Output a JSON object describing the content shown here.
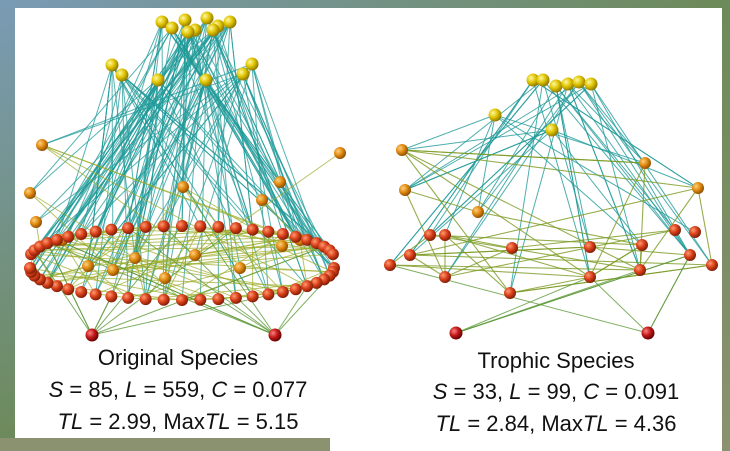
{
  "panels": [
    {
      "title": "Original Species",
      "stats": [
        [
          "S",
          " = 85, ",
          "L",
          " = 559, ",
          "C",
          " = 0.077"
        ],
        [
          "TL",
          " = 2.99, Max",
          "TL",
          " = 5.15"
        ]
      ]
    },
    {
      "title": "Trophic Species",
      "stats": [
        [
          "S",
          " = 33, ",
          "L",
          " = 99, ",
          "C",
          " = 0.091"
        ],
        [
          "TL",
          " = 2.84, Max",
          "TL",
          " = 4.36"
        ]
      ]
    }
  ]
}
